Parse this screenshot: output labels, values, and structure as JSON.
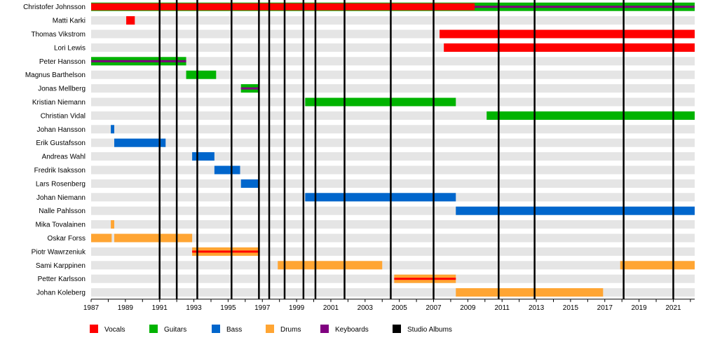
{
  "chart_data": {
    "type": "timeline",
    "xlim": [
      1987,
      2022.25
    ],
    "x_ticks": [
      "1987",
      "1989",
      "1991",
      "1993",
      "1995",
      "1997",
      "1999",
      "2001",
      "2003",
      "2005",
      "2007",
      "2009",
      "2011",
      "2013",
      "2015",
      "2017",
      "2019",
      "2021"
    ],
    "studio_albums": [
      1991.0,
      1992.0,
      1993.2,
      1995.2,
      1996.8,
      1997.4,
      1998.3,
      1999.4,
      2000.1,
      2001.8,
      2004.5,
      2007.0,
      2010.8,
      2012.9,
      2018.1,
      2021.0
    ],
    "colors": {
      "vocals": "#ff0000",
      "guitars": "#00b300",
      "bass": "#0066cc",
      "drums": "#ffa533",
      "keyboards": "#800080",
      "albums": "#000000",
      "stripe": "#e5e5e5"
    },
    "members": [
      {
        "name": "Christofer Johnsson",
        "bars": [
          {
            "role": "guitars",
            "start": 1987.0,
            "end": 2022.25,
            "thin": "keyboards"
          },
          {
            "role": "vocals",
            "start": 1987.0,
            "end": 2009.4,
            "thin": "none"
          }
        ]
      },
      {
        "name": "Matti Karki",
        "bars": [
          {
            "role": "vocals",
            "start": 1989.05,
            "end": 1989.55
          }
        ]
      },
      {
        "name": "Thomas Vikstrom",
        "bars": [
          {
            "role": "vocals",
            "start": 2007.35,
            "end": 2022.25
          }
        ]
      },
      {
        "name": "Lori Lewis",
        "bars": [
          {
            "role": "vocals",
            "start": 2007.6,
            "end": 2022.25
          }
        ]
      },
      {
        "name": "Peter Hansson",
        "bars": [
          {
            "role": "guitars",
            "start": 1987.0,
            "end": 1992.55,
            "thin": "keyboards"
          }
        ]
      },
      {
        "name": "Magnus Barthelson",
        "bars": [
          {
            "role": "guitars",
            "start": 1992.55,
            "end": 1994.3
          }
        ]
      },
      {
        "name": "Jonas Mellberg",
        "bars": [
          {
            "role": "guitars",
            "start": 1995.75,
            "end": 1996.8,
            "thin": "keyboards"
          }
        ]
      },
      {
        "name": "Kristian Niemann",
        "bars": [
          {
            "role": "guitars",
            "start": 1999.5,
            "end": 2008.3
          }
        ]
      },
      {
        "name": "Christian Vidal",
        "bars": [
          {
            "role": "guitars",
            "start": 2010.1,
            "end": 2022.25
          }
        ]
      },
      {
        "name": "Johan Hansson",
        "bars": [
          {
            "role": "bass",
            "start": 1988.15,
            "end": 1988.35
          }
        ]
      },
      {
        "name": "Erik Gustafsson",
        "bars": [
          {
            "role": "bass",
            "start": 1988.35,
            "end": 1991.35
          }
        ]
      },
      {
        "name": "Andreas Wahl",
        "bars": [
          {
            "role": "bass",
            "start": 1992.9,
            "end": 1994.2
          }
        ]
      },
      {
        "name": "Fredrik Isaksson",
        "bars": [
          {
            "role": "bass",
            "start": 1994.2,
            "end": 1995.7
          }
        ]
      },
      {
        "name": "Lars Rosenberg",
        "bars": [
          {
            "role": "bass",
            "start": 1995.75,
            "end": 1996.8
          }
        ]
      },
      {
        "name": "Johan Niemann",
        "bars": [
          {
            "role": "bass",
            "start": 1999.5,
            "end": 2008.3
          }
        ]
      },
      {
        "name": "Nalle Pahlsson",
        "bars": [
          {
            "role": "bass",
            "start": 2008.3,
            "end": 2022.25
          }
        ]
      },
      {
        "name": "Mika Tovalainen",
        "bars": [
          {
            "role": "drums",
            "start": 1988.15,
            "end": 1988.35
          }
        ]
      },
      {
        "name": "Oskar Forss",
        "bars": [
          {
            "role": "drums",
            "start": 1987.0,
            "end": 1988.2
          },
          {
            "role": "drums",
            "start": 1988.35,
            "end": 1992.9
          }
        ]
      },
      {
        "name": "Piotr Wawrzeniuk",
        "bars": [
          {
            "role": "drums",
            "start": 1992.9,
            "end": 1996.85,
            "thin": "vocals"
          }
        ]
      },
      {
        "name": "Sami Karppinen",
        "bars": [
          {
            "role": "drums",
            "start": 1997.9,
            "end": 2004.0
          },
          {
            "role": "drums",
            "start": 2017.9,
            "end": 2022.25
          }
        ]
      },
      {
        "name": "Petter Karlsson",
        "bars": [
          {
            "role": "drums",
            "start": 2004.7,
            "end": 2008.3,
            "thin": "vocals"
          }
        ]
      },
      {
        "name": "Johan Koleberg",
        "bars": [
          {
            "role": "drums",
            "start": 2008.3,
            "end": 2016.9
          }
        ]
      }
    ],
    "legend": [
      {
        "label": "Vocals",
        "role": "vocals"
      },
      {
        "label": "Guitars",
        "role": "guitars"
      },
      {
        "label": "Bass",
        "role": "bass"
      },
      {
        "label": "Drums",
        "role": "drums"
      },
      {
        "label": "Keyboards",
        "role": "keyboards"
      },
      {
        "label": "Studio Albums",
        "role": "albums"
      }
    ]
  }
}
